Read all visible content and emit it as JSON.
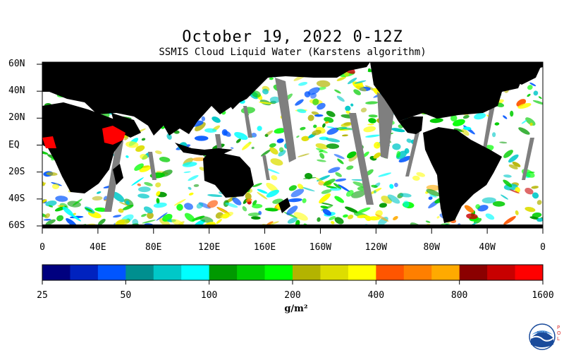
{
  "title": "October 19, 2022 0-12Z",
  "subtitle": "SSMIS Cloud Liquid Water (Karstens algorithm)",
  "map": {
    "lat_labels": [
      "60N",
      "40N",
      "20N",
      "EQ",
      "20S",
      "40S",
      "60S"
    ],
    "lon_labels": [
      "0",
      "40E",
      "80E",
      "120E",
      "160E",
      "160W",
      "120W",
      "80W",
      "40W",
      "0"
    ]
  },
  "colorbar": {
    "colors": [
      "#00007f",
      "#0022bf",
      "#0055ff",
      "#008f8f",
      "#00c8c8",
      "#00ffff",
      "#009900",
      "#00cc00",
      "#00ff00",
      "#b3b300",
      "#dddd00",
      "#ffff00",
      "#ff5500",
      "#ff7f00",
      "#ffaa00",
      "#8b0000",
      "#c80000",
      "#ff0000"
    ],
    "tick_labels": [
      "25",
      "50",
      "100",
      "200",
      "400",
      "800",
      "1600"
    ],
    "units": "g/m²"
  },
  "logo": {
    "name": "noaa-logo",
    "text": "NOAA",
    "side_text": [
      "P",
      "O",
      "L"
    ]
  }
}
